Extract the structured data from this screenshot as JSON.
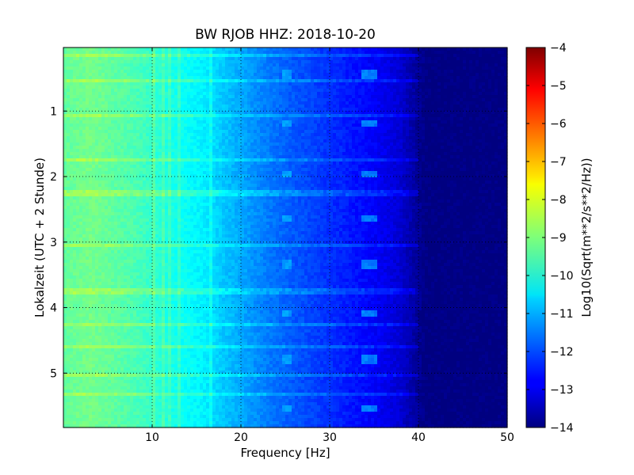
{
  "chart_data": {
    "type": "heatmap",
    "title": "BW RJOB HHZ: 2018-10-20",
    "xlabel": "Frequency [Hz]",
    "ylabel": "Lokalzeit (UTC + 2 Stunde)",
    "xlim": [
      0,
      50
    ],
    "ylim": [
      5.83,
      0.03
    ],
    "y_inverted": true,
    "xticks": [
      10,
      20,
      30,
      40,
      50
    ],
    "xtick_labels": [
      "10",
      "20",
      "30",
      "40",
      "50"
    ],
    "yticks": [
      1,
      2,
      3,
      4,
      5
    ],
    "ytick_labels": [
      "1",
      "2",
      "3",
      "4",
      "5"
    ],
    "grid": true,
    "colormap": "jet",
    "colorbar": {
      "label": "Log10(Sqrt(m**2/s**2/Hz))",
      "range": [
        -14,
        -4
      ],
      "ticks": [
        -4,
        -5,
        -6,
        -7,
        -8,
        -9,
        -10,
        -11,
        -12,
        -13,
        -14
      ],
      "tick_labels": [
        "−4",
        "−5",
        "−6",
        "−7",
        "−8",
        "−9",
        "−10",
        "−11",
        "−12",
        "−13",
        "−14"
      ]
    },
    "psd_profile": {
      "frequency_hz": [
        0,
        3,
        8,
        12,
        16,
        18,
        20,
        22,
        25,
        28,
        31,
        34,
        36,
        38,
        39,
        40,
        41,
        42,
        50
      ],
      "log_amplitude": [
        -9.3,
        -9.1,
        -9.5,
        -10.0,
        -10.4,
        -10.8,
        -11.1,
        -11.4,
        -11.8,
        -12.1,
        -12.4,
        -12.7,
        -12.9,
        -13.2,
        -13.5,
        -13.8,
        -14.0,
        -14.0,
        -14.0
      ]
    },
    "spectral_lines_hz": [
      10.3,
      11.2,
      12.0,
      13.1,
      16.6
    ],
    "periodic_events_hours": [
      0.45,
      1.2,
      1.95,
      2.65,
      3.35,
      4.1,
      4.8,
      5.55
    ],
    "line_feature_frequency_hz": [
      33.8,
      35.2
    ],
    "broadband_bursts_hours": [
      0.15,
      0.55,
      1.05,
      1.75,
      2.25,
      3.05,
      3.75,
      4.25,
      4.6,
      5.02,
      5.32
    ]
  }
}
